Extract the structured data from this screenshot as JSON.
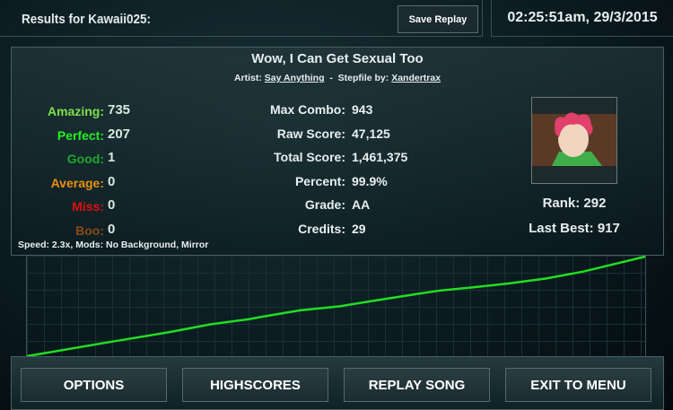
{
  "header": {
    "title": "Results for Kawaii025:",
    "save_replay": "Save Replay",
    "datetime": "02:25:51am, 29/3/2015"
  },
  "song": {
    "title": "Wow, I Can Get Sexual Too",
    "artist_label": "Artist:",
    "artist": "Say Anything",
    "sep": "-",
    "stepfile_label": "Stepfile by:",
    "stepfile": "Xandertrax"
  },
  "judgements": [
    {
      "label": "Amazing:",
      "value": "735",
      "color": "#7ee04a"
    },
    {
      "label": "Perfect:",
      "value": "207",
      "color": "#22ee22"
    },
    {
      "label": "Good:",
      "value": "1",
      "color": "#1ea82a"
    },
    {
      "label": "Average:",
      "value": "0",
      "color": "#e8900e"
    },
    {
      "label": "Miss:",
      "value": "0",
      "color": "#e01010"
    },
    {
      "label": "Boo:",
      "value": "0",
      "color": "#8a4a14"
    }
  ],
  "stats": [
    {
      "label": "Max Combo:",
      "value": "943"
    },
    {
      "label": "Raw Score:",
      "value": "47,125"
    },
    {
      "label": "Total Score:",
      "value": "1,461,375"
    },
    {
      "label": "Percent:",
      "value": "99.9%"
    },
    {
      "label": "Grade:",
      "value": "AA"
    },
    {
      "label": "Credits:",
      "value": "29"
    }
  ],
  "mods": "Speed: 2.3x, Mods: No Background, Mirror",
  "rank": "Rank: 292",
  "last_best": "Last Best: 917",
  "chart_data": {
    "type": "line",
    "color": "#22dd22",
    "grid": true,
    "x": [
      0,
      14.2,
      22.9,
      29.7,
      35.8,
      38.4,
      44.2,
      50.5,
      55.5,
      63.6,
      67.0,
      72.0,
      77.9,
      84.0,
      90.0,
      100
    ],
    "y": [
      0,
      15,
      24,
      32,
      37,
      40,
      46,
      50,
      55,
      63,
      66,
      69,
      73,
      78,
      85,
      100
    ]
  },
  "buttons": [
    "OPTIONS",
    "HIGHSCORES",
    "REPLAY SONG",
    "EXIT TO MENU"
  ]
}
